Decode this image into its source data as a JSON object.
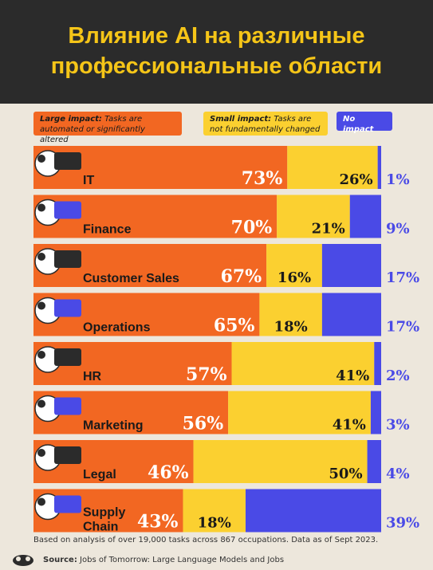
{
  "header": {
    "title_line1": "Влияние AI на различные",
    "title_line2": "профессиональные области"
  },
  "legend": {
    "large_title": "Large impact:",
    "large_desc": "Tasks are automated or significantly altered",
    "small_title": "Small impact:",
    "small_desc": "Tasks are not fundamentally changed",
    "none_title": "No impact"
  },
  "colors": {
    "large": "#f26722",
    "small": "#fbd030",
    "none": "#4a4ae6",
    "background": "#ede7dc",
    "header": "#2b2b2b",
    "title": "#f5c518"
  },
  "chart_data": {
    "type": "bar",
    "orientation": "horizontal",
    "stacked": true,
    "categories": [
      "IT",
      "Finance",
      "Customer Sales",
      "Operations",
      "HR",
      "Marketing",
      "Legal",
      "Supply Chain"
    ],
    "series": [
      {
        "name": "Large impact",
        "values": [
          73,
          70,
          67,
          65,
          57,
          56,
          46,
          43
        ]
      },
      {
        "name": "Small impact",
        "values": [
          26,
          21,
          16,
          18,
          41,
          41,
          50,
          18
        ]
      },
      {
        "name": "No impact",
        "values": [
          1,
          9,
          17,
          17,
          2,
          3,
          4,
          39
        ]
      }
    ],
    "labels_large": [
      "73%",
      "70%",
      "67%",
      "65%",
      "57%",
      "56%",
      "46%",
      "43%"
    ],
    "labels_small": [
      "26%",
      "21%",
      "16%",
      "18%",
      "41%",
      "41%",
      "50%",
      "18%"
    ],
    "labels_none": [
      "1%",
      "9%",
      "17%",
      "17%",
      "2%",
      "3%",
      "4%",
      "39%"
    ],
    "xlim": [
      0,
      100
    ],
    "grid": false,
    "legend_position": "top"
  },
  "footer": {
    "note": "Based on analysis of over 19,000 tasks across 867 occupations. Data as of Sept 2023.",
    "source_label": "Source:",
    "source_text": "Jobs of Tomorrow: Large Language Models and Jobs"
  },
  "icons": [
    "it-worker-icon",
    "finance-icon",
    "customer-sales-icon",
    "operations-icon",
    "hr-icon",
    "marketing-icon",
    "legal-icon",
    "supply-chain-icon"
  ]
}
